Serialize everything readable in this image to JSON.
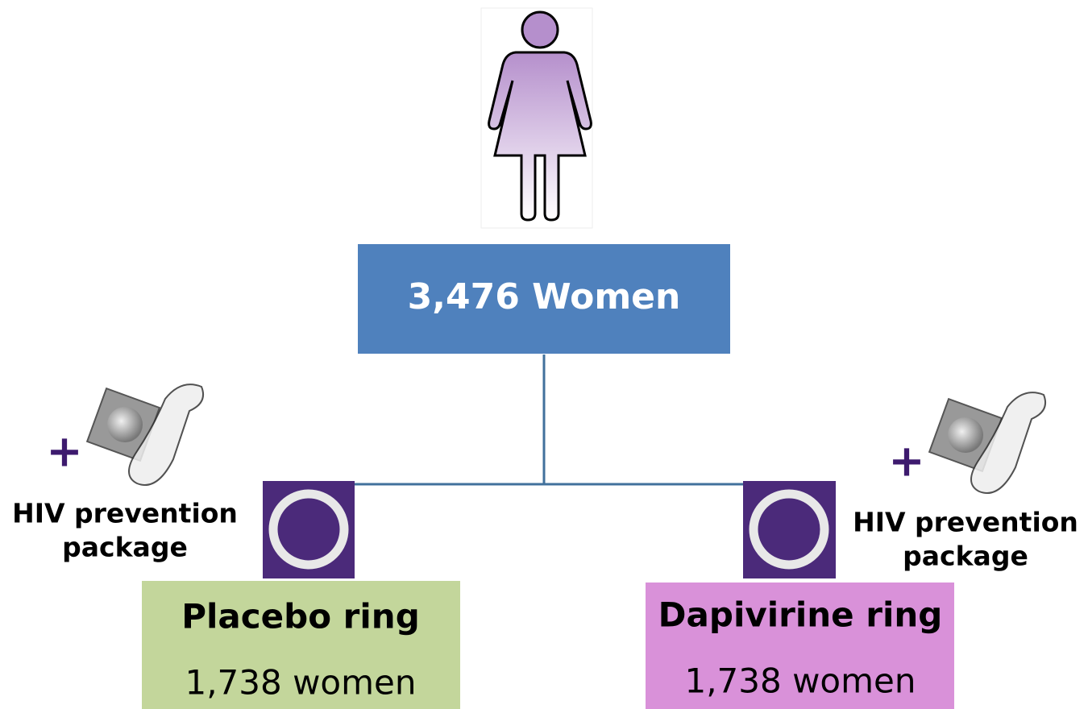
{
  "root": {
    "label": "3,476 Women"
  },
  "packages": [
    {
      "plus": "+",
      "label_lines": [
        "HIV prevention",
        "package"
      ]
    },
    {
      "plus": "+",
      "label_lines": [
        "HIV prevention",
        "package"
      ]
    }
  ],
  "arms": [
    {
      "title": "Placebo ring",
      "count": "1,738 women"
    },
    {
      "title": "Dapivirine ring",
      "count": "1,738 women"
    }
  ]
}
